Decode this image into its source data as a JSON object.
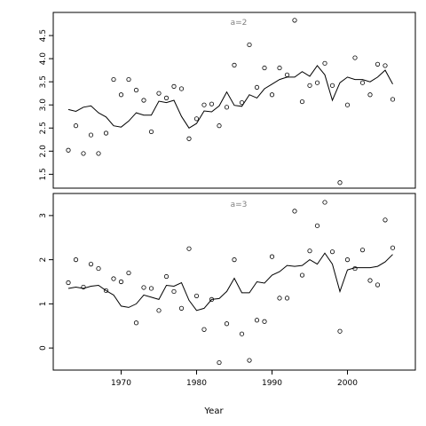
{
  "chart_data": [
    {
      "type": "scatter",
      "panel_label": "a=2",
      "xlim": [
        1961,
        2009
      ],
      "ylim": [
        1.2,
        5.0
      ],
      "yticks": [
        1.5,
        2.0,
        2.5,
        3.0,
        3.5,
        4.0,
        4.5
      ],
      "ytick_labels": [
        "1.5",
        "2.0",
        "2.5",
        "3.0",
        "3.5",
        "4.0",
        "4.5"
      ],
      "points": {
        "x": [
          1963,
          1964,
          1965,
          1966,
          1967,
          1968,
          1969,
          1970,
          1971,
          1972,
          1973,
          1974,
          1975,
          1976,
          1977,
          1978,
          1979,
          1980,
          1981,
          1982,
          1983,
          1984,
          1985,
          1986,
          1987,
          1988,
          1989,
          1990,
          1991,
          1992,
          1993,
          1994,
          1995,
          1996,
          1997,
          1998,
          1999,
          2000,
          2001,
          2002,
          2003,
          2004,
          2005,
          2006
        ],
        "y": [
          2.02,
          2.55,
          1.95,
          2.35,
          1.95,
          2.39,
          3.55,
          3.22,
          3.55,
          3.32,
          3.1,
          2.42,
          3.25,
          3.15,
          3.4,
          3.35,
          2.27,
          2.7,
          3.0,
          3.02,
          2.55,
          2.95,
          3.86,
          3.05,
          4.3,
          3.38,
          3.8,
          3.22,
          3.8,
          3.65,
          4.83,
          3.07,
          3.42,
          3.48,
          3.9,
          3.42,
          1.32,
          3.0,
          4.02,
          3.48,
          3.22,
          3.88,
          3.85,
          3.12
        ]
      },
      "line": {
        "x": [
          1963,
          1964,
          1965,
          1966,
          1967,
          1968,
          1969,
          1970,
          1971,
          1972,
          1973,
          1974,
          1975,
          1976,
          1977,
          1978,
          1979,
          1980,
          1981,
          1982,
          1983,
          1984,
          1985,
          1986,
          1987,
          1988,
          1989,
          1990,
          1991,
          1992,
          1993,
          1994,
          1995,
          1996,
          1997,
          1998,
          1999,
          2000,
          2001,
          2002,
          2003,
          2004,
          2005,
          2006
        ],
        "y": [
          2.9,
          2.86,
          2.95,
          2.98,
          2.83,
          2.74,
          2.55,
          2.52,
          2.65,
          2.83,
          2.78,
          2.78,
          3.08,
          3.05,
          3.1,
          2.75,
          2.5,
          2.6,
          2.87,
          2.85,
          2.98,
          3.28,
          2.99,
          2.97,
          3.22,
          3.15,
          3.35,
          3.45,
          3.55,
          3.6,
          3.6,
          3.72,
          3.62,
          3.85,
          3.65,
          3.1,
          3.48,
          3.6,
          3.55,
          3.55,
          3.5,
          3.6,
          3.75,
          3.45
        ]
      }
    },
    {
      "type": "scatter",
      "panel_label": "a=3",
      "xlim": [
        1961,
        2009
      ],
      "ylim": [
        -0.5,
        3.5
      ],
      "yticks": [
        0,
        1,
        2,
        3
      ],
      "ytick_labels": [
        "0",
        "1",
        "2",
        "3"
      ],
      "xticks": [
        1970,
        1980,
        1990,
        2000
      ],
      "xtick_labels": [
        "1970",
        "1980",
        "1990",
        "2000"
      ],
      "xlabel": "Year",
      "points": {
        "x": [
          1963,
          1964,
          1965,
          1966,
          1967,
          1968,
          1969,
          1970,
          1971,
          1972,
          1973,
          1974,
          1975,
          1976,
          1977,
          1978,
          1979,
          1980,
          1981,
          1982,
          1983,
          1984,
          1985,
          1986,
          1987,
          1988,
          1989,
          1990,
          1991,
          1992,
          1993,
          1994,
          1995,
          1996,
          1997,
          1998,
          1999,
          2000,
          2001,
          2002,
          2003,
          2004,
          2005,
          2006
        ],
        "y": [
          1.48,
          2.0,
          1.38,
          1.9,
          1.8,
          1.3,
          1.57,
          1.5,
          1.7,
          0.57,
          1.37,
          1.35,
          0.85,
          1.62,
          1.28,
          0.9,
          2.25,
          1.18,
          0.42,
          1.1,
          -0.33,
          0.55,
          2.0,
          0.32,
          -0.28,
          0.63,
          0.6,
          2.07,
          1.13,
          1.13,
          3.1,
          1.65,
          2.2,
          2.77,
          3.3,
          2.18,
          0.38,
          2.0,
          1.8,
          2.22,
          1.53,
          1.43,
          2.9,
          2.27
        ]
      },
      "line": {
        "x": [
          1963,
          1964,
          1965,
          1966,
          1967,
          1968,
          1969,
          1970,
          1971,
          1972,
          1973,
          1974,
          1975,
          1976,
          1977,
          1978,
          1979,
          1980,
          1981,
          1982,
          1983,
          1984,
          1985,
          1986,
          1987,
          1988,
          1989,
          1990,
          1991,
          1992,
          1993,
          1994,
          1995,
          1996,
          1997,
          1998,
          1999,
          2000,
          2001,
          2002,
          2003,
          2004,
          2005,
          2006
        ],
        "y": [
          1.35,
          1.38,
          1.35,
          1.4,
          1.42,
          1.3,
          1.2,
          0.95,
          0.92,
          1.0,
          1.2,
          1.15,
          1.1,
          1.42,
          1.4,
          1.48,
          1.08,
          0.85,
          0.9,
          1.1,
          1.12,
          1.28,
          1.58,
          1.25,
          1.25,
          1.5,
          1.47,
          1.65,
          1.73,
          1.87,
          1.85,
          1.87,
          2.0,
          1.9,
          2.15,
          1.9,
          1.28,
          1.77,
          1.82,
          1.82,
          1.82,
          1.85,
          1.95,
          2.12
        ]
      }
    }
  ]
}
